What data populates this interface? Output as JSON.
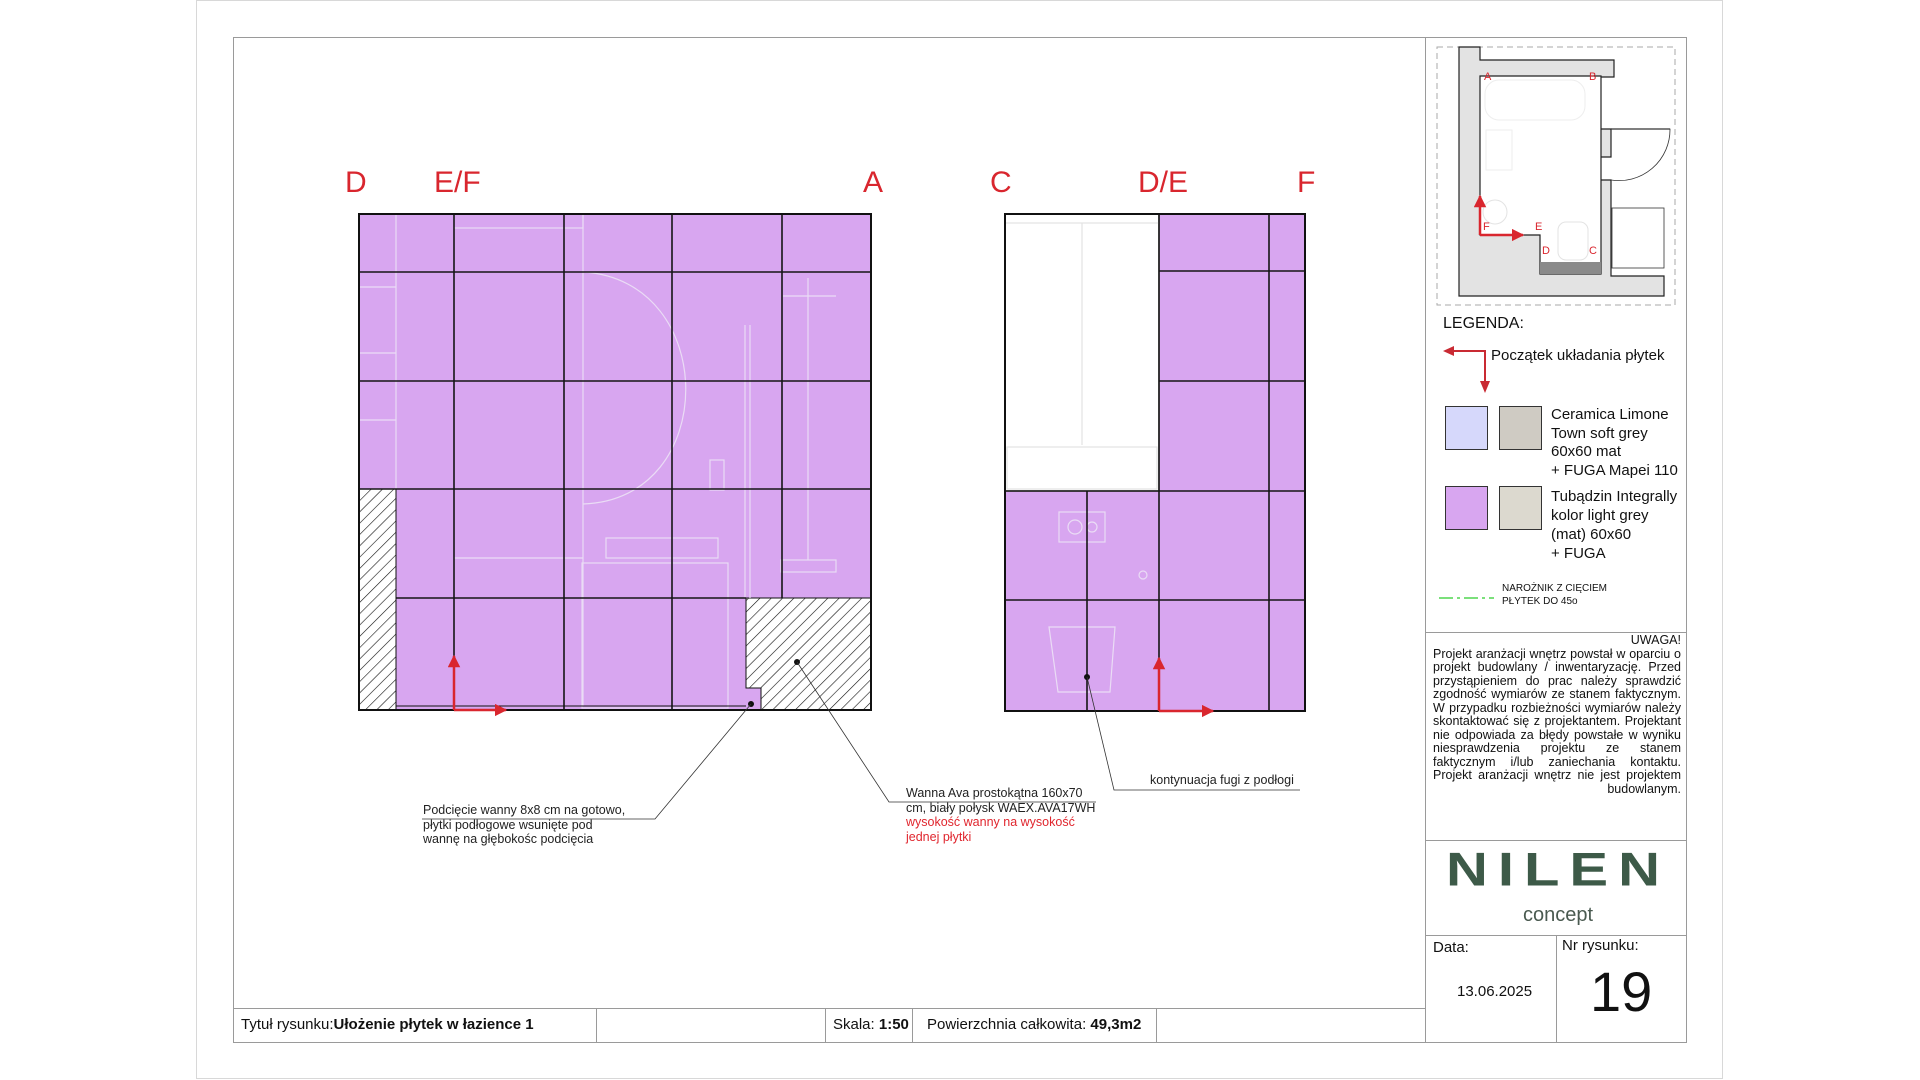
{
  "elevation_1": {
    "labels": [
      "D",
      "E/F",
      "A"
    ],
    "tile_color": "#d8a6f0"
  },
  "elevation_2": {
    "labels": [
      "C",
      "D/E",
      "F"
    ]
  },
  "notes": {
    "undercut": [
      "Podcięcie wanny 8x8 cm na gotowo,",
      "płytki podłogowe wsunięte pod",
      "wannę na głębokośc podcięcia"
    ],
    "bathtub": [
      "Wanna Ava prostokątna 160x70",
      "cm, biały połysk WAEX.AVA17WH"
    ],
    "bathtub_red": [
      "wysokość wanny na wysokość",
      "jednej płytki"
    ],
    "grout": "kontynuacja fugi z podłogi"
  },
  "plan": {
    "labels": [
      "A",
      "B",
      "F",
      "E",
      "D",
      "C"
    ]
  },
  "legend": {
    "title": "LEGENDA:",
    "start_label": "Początek układania płytek",
    "items": [
      {
        "lines": [
          "Ceramica Limone",
          "Town soft grey",
          "60x60 mat",
          "+ FUGA Mapei 110"
        ],
        "color": "#d6d8fb",
        "grout_color": "#cfcbc3"
      },
      {
        "lines": [
          "Tubądzin Integrally",
          "kolor light grey",
          "(mat) 60x60",
          "+ FUGA"
        ],
        "color": "#d8a6f0",
        "grout_color": "#dcd9cf"
      }
    ],
    "corner_lines": [
      "NAROŻNIK Z CIĘCIEM",
      "PŁYTEK DO 45o"
    ],
    "corner_color": "#7be07b"
  },
  "warning": {
    "title": "UWAGA!",
    "text": "Projekt aranżacji wnętrz powstał w oparciu o projekt budowlany / inwentaryzację. Przed przystąpieniem do prac należy sprawdzić zgodność wymiarów ze stanem faktycznym. W przypadku rozbieżności wymiarów należy skontaktować się z projektantem. Projektant nie odpowiada za błędy powstałe w wyniku niesprawdzenia projektu ze stanem faktycznym i/lub zaniechania kontaktu. Projekt aranżacji wnętrz nie jest projektem budowlanym."
  },
  "logo": {
    "name": "NILEN",
    "sub": "concept",
    "color": "#3d5a48"
  },
  "title_block": {
    "date_label": "Data:",
    "date": "13.06.2025",
    "drawing_no_label": "Nr rysunku:",
    "drawing_no": "19",
    "title_label": "Tytuł rysunku:",
    "title": "Ułożenie płytek w łazience 1",
    "scale_label": "Skala:",
    "scale": "1:50",
    "area_label": "Powierzchnia całkowita:",
    "area": "49,3m2"
  }
}
